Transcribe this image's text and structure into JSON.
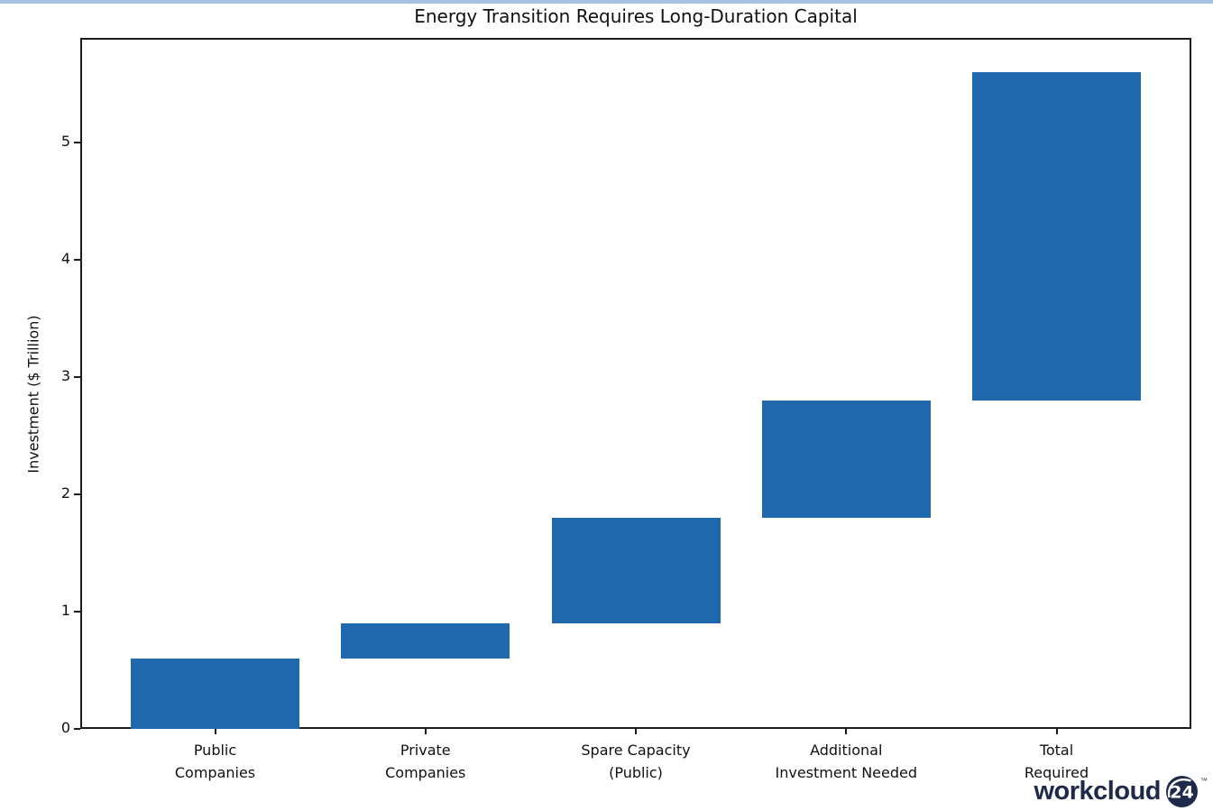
{
  "chart_data": {
    "type": "bar",
    "subtype": "waterfall",
    "title": "Energy Transition Requires Long-Duration Capital",
    "xlabel": "",
    "ylabel": "Investment ($ Trillion)",
    "categories": [
      [
        "Public",
        "Companies"
      ],
      [
        "Private",
        "Companies"
      ],
      [
        "Spare Capacity",
        "(Public)"
      ],
      [
        "Additional",
        "Investment Needed"
      ],
      [
        "Total",
        "Required"
      ]
    ],
    "bars": [
      {
        "start": 0.0,
        "end": 0.6
      },
      {
        "start": 0.6,
        "end": 0.9
      },
      {
        "start": 0.9,
        "end": 1.8
      },
      {
        "start": 1.8,
        "end": 2.8
      },
      {
        "start": 2.8,
        "end": 5.6
      }
    ],
    "increments": [
      0.6,
      0.3,
      0.9,
      1.0,
      2.8
    ],
    "yticks": [
      0,
      1,
      2,
      3,
      4,
      5
    ],
    "ylim": [
      0,
      5.89
    ],
    "grid": false,
    "legend_position": "none",
    "bar_color": "#2068ad",
    "axis_color": "#1c1c1c",
    "text_color": "#111111"
  },
  "branding": {
    "logo_text": "workcloud",
    "logo_badge": "24",
    "trademark": "™",
    "navy": "#1e2a4a",
    "badge_text_color": "#ffffff"
  },
  "accent": {
    "top_strip_color": "#a8c3e2"
  }
}
